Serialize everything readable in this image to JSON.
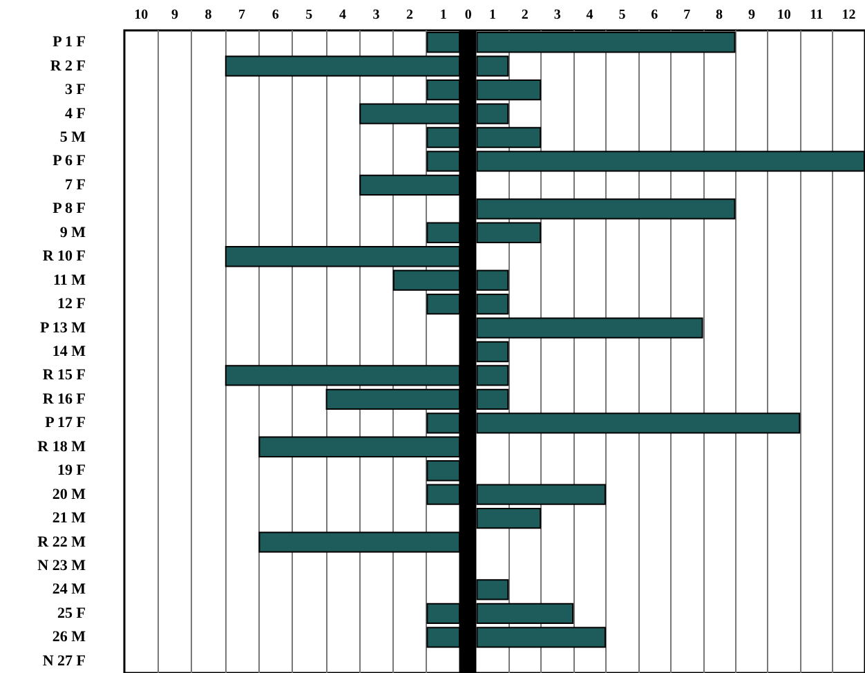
{
  "chart_data": [
    {
      "type": "bar",
      "orientation": "horizontal",
      "categories": [
        "P 1 F",
        "R 2 F",
        "3 F",
        "4 F",
        "5 M",
        "P 6 F",
        "7 F",
        "P 8 F",
        "9 M",
        "R 10 F",
        "11 M",
        "12 F",
        "P 13 M",
        "14 M",
        "R 15 F",
        "R 16 F",
        "P 17 F",
        "R 18 M",
        "19 F",
        "20 M",
        "21 M",
        "R 22 M",
        "N 23 M",
        "24 M",
        "25 F",
        "26 M",
        "N 27 F"
      ],
      "values": [
        1,
        7,
        1,
        3,
        1,
        1,
        3,
        null,
        1,
        7,
        2,
        1,
        null,
        null,
        7,
        4,
        1,
        6,
        1,
        1,
        null,
        6,
        null,
        null,
        1,
        1,
        null
      ],
      "color": "#1e5b5b",
      "xlim": [
        10,
        0
      ],
      "xticks": [
        {
          "value": 0.5,
          "label": "1"
        },
        {
          "value": 1.5,
          "label": "2"
        },
        {
          "value": 2.5,
          "label": "3"
        },
        {
          "value": 3.5,
          "label": "4"
        },
        {
          "value": 4.5,
          "label": "5"
        },
        {
          "value": 5.5,
          "label": "6"
        },
        {
          "value": 6.5,
          "label": "7"
        },
        {
          "value": 7.5,
          "label": "8"
        },
        {
          "value": 8.5,
          "label": "9"
        },
        {
          "value": 9.5,
          "label": "10"
        },
        {
          "value": 1,
          "label": null
        },
        {
          "value": 2,
          "label": null
        },
        {
          "value": 3,
          "label": null
        },
        {
          "value": 4,
          "label": null
        },
        {
          "value": 5,
          "label": null
        },
        {
          "value": 6,
          "label": null
        },
        {
          "value": 7,
          "label": null
        },
        {
          "value": 8,
          "label": null
        },
        {
          "value": 9,
          "label": null
        }
      ],
      "grid": "x"
    },
    {
      "type": "bar",
      "orientation": "horizontal",
      "categories": [
        null,
        null,
        null,
        null,
        null,
        null,
        null,
        null,
        null,
        null,
        null,
        null,
        null,
        null,
        null,
        null,
        null,
        null,
        null,
        null,
        null,
        null,
        null,
        null,
        null,
        null,
        null
      ],
      "values": [
        8,
        1,
        2,
        1,
        2,
        12,
        null,
        8,
        2,
        null,
        1,
        1,
        7,
        1,
        1,
        1,
        10,
        null,
        null,
        4,
        2,
        null,
        null,
        1,
        3,
        4,
        null
      ],
      "color": "#1e5b5b",
      "xlim": [
        -0.5,
        12
      ],
      "xticks": [
        {
          "value": 0.5,
          "label": "1"
        },
        {
          "value": 1.5,
          "label": "2"
        },
        {
          "value": 2.5,
          "label": "3"
        },
        {
          "value": 3.5,
          "label": "4"
        },
        {
          "value": 4.5,
          "label": "5"
        },
        {
          "value": 5.5,
          "label": "6"
        },
        {
          "value": 6.5,
          "label": "7"
        },
        {
          "value": 7.5,
          "label": "8"
        },
        {
          "value": 8.5,
          "label": "9"
        },
        {
          "value": 9.5,
          "label": "10"
        },
        {
          "value": 10.5,
          "label": "11"
        },
        {
          "value": 11.5,
          "label": "12"
        },
        {
          "value": 1,
          "label": null
        },
        {
          "value": 2,
          "label": null
        },
        {
          "value": 3,
          "label": null
        },
        {
          "value": 4,
          "label": null
        },
        {
          "value": 5,
          "label": null
        },
        {
          "value": 6,
          "label": null
        },
        {
          "value": 7,
          "label": null
        },
        {
          "value": 8,
          "label": null
        },
        {
          "value": 9,
          "label": null
        },
        {
          "value": 10,
          "label": null
        },
        {
          "value": 11,
          "label": null
        }
      ],
      "bands": [
        {
          "axis": "x",
          "from": -0.5,
          "to": 0,
          "label": "0",
          "color": "#000000"
        }
      ],
      "grid": "x",
      "tick_labels": "x"
    }
  ]
}
